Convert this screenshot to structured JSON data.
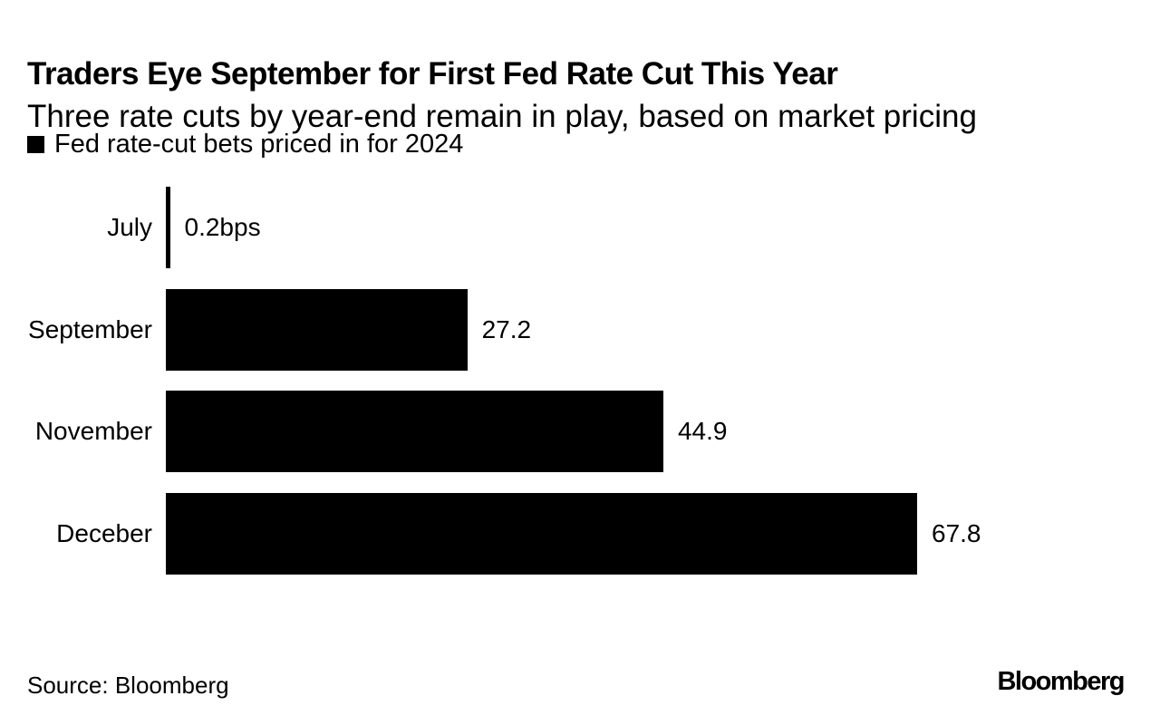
{
  "header": {
    "title": "Traders Eye September for First Fed Rate Cut This Year",
    "subtitle": "Three rate cuts by year-end remain in play, based on market pricing"
  },
  "legend": {
    "label": "Fed rate-cut bets priced in for 2024",
    "swatch_color": "#000000"
  },
  "chart_data": {
    "type": "bar",
    "orientation": "horizontal",
    "title": "Fed rate-cut bets priced in for 2024",
    "categories": [
      "July",
      "September",
      "November",
      "Deceber"
    ],
    "values": [
      0.2,
      27.2,
      44.9,
      67.8
    ],
    "value_labels": [
      "0.2bps",
      "27.2",
      "44.9",
      "67.8"
    ],
    "unit": "bps",
    "xlim": [
      0,
      70
    ],
    "bar_color": "#000000",
    "background_color": "#ffffff",
    "grid": false,
    "legend_position": "top-left",
    "value_label_position": "right-of-bar"
  },
  "footer": {
    "source": "Source: Bloomberg",
    "logo": "Bloomberg"
  }
}
